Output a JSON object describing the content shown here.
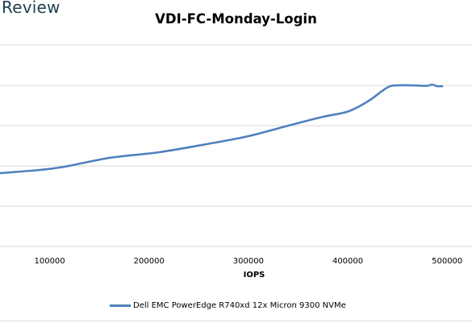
{
  "brand": {
    "text": "Review"
  },
  "chart_data": {
    "type": "line",
    "title": "VDI-FC-Monday-Login",
    "xlabel": "IOPS",
    "ylabel": "",
    "x_ticks": [
      100000,
      200000,
      300000,
      400000,
      500000
    ],
    "xlim": [
      50000,
      525000
    ],
    "ylim": [
      0,
      6
    ],
    "y_gridlines": [
      1,
      2,
      3,
      4,
      5
    ],
    "legend_position": "bottom",
    "series": [
      {
        "name": "Dell EMC PowerEdge R740xd 12x Micron 9300 NVMe",
        "color": "#4f81bd",
        "x": [
          50000,
          90000,
          115000,
          160000,
          210000,
          260000,
          300000,
          340000,
          375000,
          400000,
          420000,
          440000,
          450000,
          465000,
          480000,
          485000,
          490000,
          495000
        ],
        "y": [
          1.82,
          1.9,
          1.98,
          2.2,
          2.34,
          2.55,
          2.74,
          3.0,
          3.22,
          3.35,
          3.6,
          3.95,
          4.0,
          4.0,
          3.99,
          4.02,
          3.98,
          3.98
        ]
      }
    ]
  }
}
